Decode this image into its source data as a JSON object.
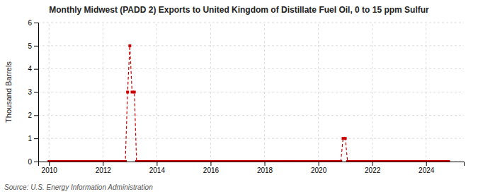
{
  "chart_data": {
    "type": "line",
    "title": "Monthly Midwest (PADD 2) Exports to United Kingdom of Distillate Fuel Oil, 0 to 15 ppm Sulfur",
    "ylabel": "Thousand Barrels",
    "source": "Source: U.S. Energy Information Administration",
    "xlim": [
      2009.6,
      2025.4
    ],
    "ylim": [
      0,
      6
    ],
    "xticks": [
      2010,
      2012,
      2014,
      2016,
      2018,
      2020,
      2022,
      2024
    ],
    "yticks": [
      0,
      1,
      2,
      3,
      4,
      5,
      6
    ],
    "grid": true,
    "color": "#cc0000",
    "marker": "square",
    "line_style": "dashed",
    "x": [
      2010.0,
      2010.083,
      2010.167,
      2010.25,
      2010.333,
      2010.417,
      2010.5,
      2010.583,
      2010.667,
      2010.75,
      2010.833,
      2010.917,
      2011.0,
      2011.083,
      2011.167,
      2011.25,
      2011.333,
      2011.417,
      2011.5,
      2011.583,
      2011.667,
      2011.75,
      2011.833,
      2011.917,
      2012.0,
      2012.083,
      2012.167,
      2012.25,
      2012.333,
      2012.417,
      2012.5,
      2012.583,
      2012.667,
      2012.75,
      2012.833,
      2012.917,
      2013.0,
      2013.083,
      2013.167,
      2013.25,
      2013.333,
      2013.417,
      2013.5,
      2013.583,
      2013.667,
      2013.75,
      2013.833,
      2013.917,
      2014.0,
      2014.083,
      2014.167,
      2014.25,
      2014.333,
      2014.417,
      2014.5,
      2014.583,
      2014.667,
      2014.75,
      2014.833,
      2014.917,
      2015.0,
      2015.083,
      2015.167,
      2015.25,
      2015.333,
      2015.417,
      2015.5,
      2015.583,
      2015.667,
      2015.75,
      2015.833,
      2015.917,
      2016.0,
      2016.083,
      2016.167,
      2016.25,
      2016.333,
      2016.417,
      2016.5,
      2016.583,
      2016.667,
      2016.75,
      2016.833,
      2016.917,
      2017.0,
      2017.083,
      2017.167,
      2017.25,
      2017.333,
      2017.417,
      2017.5,
      2017.583,
      2017.667,
      2017.75,
      2017.833,
      2017.917,
      2018.0,
      2018.083,
      2018.167,
      2018.25,
      2018.333,
      2018.417,
      2018.5,
      2018.583,
      2018.667,
      2018.75,
      2018.833,
      2018.917,
      2019.0,
      2019.083,
      2019.167,
      2019.25,
      2019.333,
      2019.417,
      2019.5,
      2019.583,
      2019.667,
      2019.75,
      2019.833,
      2019.917,
      2020.0,
      2020.083,
      2020.167,
      2020.25,
      2020.333,
      2020.417,
      2020.5,
      2020.583,
      2020.667,
      2020.75,
      2020.833,
      2020.917,
      2021.0,
      2021.083,
      2021.167,
      2021.25,
      2021.333,
      2021.417,
      2021.5,
      2021.583,
      2021.667,
      2021.75,
      2021.833,
      2021.917,
      2022.0,
      2022.083,
      2022.167,
      2022.25,
      2022.333,
      2022.417,
      2022.5,
      2022.583,
      2022.667,
      2022.75,
      2022.833,
      2022.917,
      2023.0,
      2023.083,
      2023.167,
      2023.25,
      2023.333,
      2023.417,
      2023.5,
      2023.583,
      2023.667,
      2023.75,
      2023.833,
      2023.917,
      2024.0,
      2024.083,
      2024.167,
      2024.25,
      2024.333,
      2024.417,
      2024.5,
      2024.583,
      2024.667,
      2024.75,
      2024.833
    ],
    "values": [
      0,
      0,
      0,
      0,
      0,
      0,
      0,
      0,
      0,
      0,
      0,
      0,
      0,
      0,
      0,
      0,
      0,
      0,
      0,
      0,
      0,
      0,
      0,
      0,
      0,
      0,
      0,
      0,
      0,
      0,
      0,
      0,
      0,
      0,
      0,
      3,
      5,
      3,
      3,
      0,
      0,
      0,
      0,
      0,
      0,
      0,
      0,
      0,
      0,
      0,
      0,
      0,
      0,
      0,
      0,
      0,
      0,
      0,
      0,
      0,
      0,
      0,
      0,
      0,
      0,
      0,
      0,
      0,
      0,
      0,
      0,
      0,
      0,
      0,
      0,
      0,
      0,
      0,
      0,
      0,
      0,
      0,
      0,
      0,
      0,
      0,
      0,
      0,
      0,
      0,
      0,
      0,
      0,
      0,
      0,
      0,
      0,
      0,
      0,
      0,
      0,
      0,
      0,
      0,
      0,
      0,
      0,
      0,
      0,
      0,
      0,
      0,
      0,
      0,
      0,
      0,
      0,
      0,
      0,
      0,
      0,
      0,
      0,
      0,
      0,
      0,
      0,
      0,
      0,
      0,
      0,
      1,
      1,
      0,
      0,
      0,
      0,
      0,
      0,
      0,
      0,
      0,
      0,
      0,
      0,
      0,
      0,
      0,
      0,
      0,
      0,
      0,
      0,
      0,
      0,
      0,
      0,
      0,
      0,
      0,
      0,
      0,
      0,
      0,
      0,
      0,
      0,
      0,
      0,
      0,
      0,
      0,
      0,
      0,
      0,
      0,
      0,
      0,
      0
    ]
  }
}
